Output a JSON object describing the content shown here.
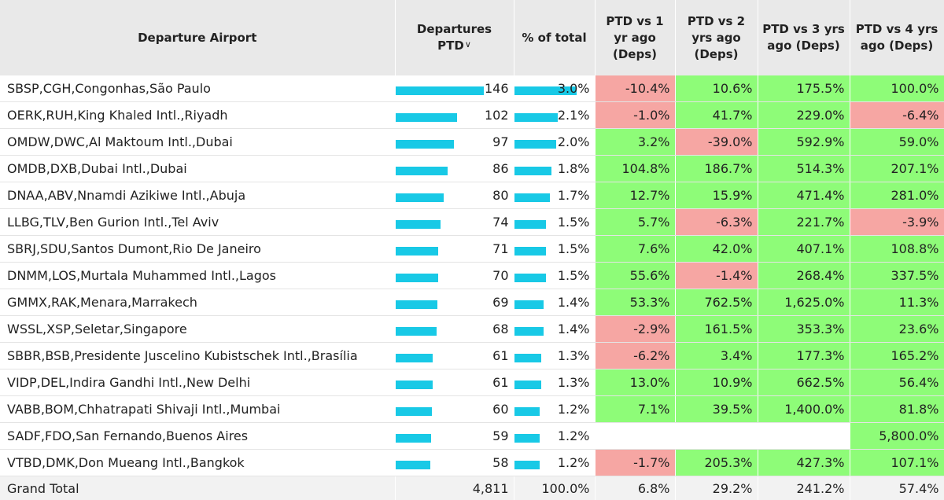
{
  "header": {
    "airport": "Departure Airport",
    "departures": "Departures PTD",
    "pct_total": "% of total",
    "vs1": "PTD vs 1 yr ago (Deps)",
    "vs2": "PTD vs 2 yrs ago (Deps)",
    "vs3": "PTD vs 3 yrs ago (Deps)",
    "vs4": "PTD vs 4 yrs ago (Deps)",
    "sort_icon": "chevron-down-icon"
  },
  "colors": {
    "bar": "#18c9e6",
    "positive": "#8efc78",
    "negative": "#f6a6a3",
    "header_bg": "#e9e9e9"
  },
  "rows": [
    {
      "airport": "SBSP,CGH,Congonhas,São Paulo",
      "deps": "146",
      "pct": "3.0%",
      "v1": "-10.4%",
      "v2": "10.6%",
      "v3": "175.5%",
      "v4": "100.0%"
    },
    {
      "airport": "OERK,RUH,King Khaled Intl.,Riyadh",
      "deps": "102",
      "pct": "2.1%",
      "v1": "-1.0%",
      "v2": "41.7%",
      "v3": "229.0%",
      "v4": "-6.4%"
    },
    {
      "airport": "OMDW,DWC,Al Maktoum Intl.,Dubai",
      "deps": "97",
      "pct": "2.0%",
      "v1": "3.2%",
      "v2": "-39.0%",
      "v3": "592.9%",
      "v4": "59.0%"
    },
    {
      "airport": "OMDB,DXB,Dubai Intl.,Dubai",
      "deps": "86",
      "pct": "1.8%",
      "v1": "104.8%",
      "v2": "186.7%",
      "v3": "514.3%",
      "v4": "207.1%"
    },
    {
      "airport": "DNAA,ABV,Nnamdi Azikiwe Intl.,Abuja",
      "deps": "80",
      "pct": "1.7%",
      "v1": "12.7%",
      "v2": "15.9%",
      "v3": "471.4%",
      "v4": "281.0%"
    },
    {
      "airport": "LLBG,TLV,Ben Gurion Intl.,Tel Aviv",
      "deps": "74",
      "pct": "1.5%",
      "v1": "5.7%",
      "v2": "-6.3%",
      "v3": "221.7%",
      "v4": "-3.9%"
    },
    {
      "airport": "SBRJ,SDU,Santos Dumont,Rio De Janeiro",
      "deps": "71",
      "pct": "1.5%",
      "v1": "7.6%",
      "v2": "42.0%",
      "v3": "407.1%",
      "v4": "108.8%"
    },
    {
      "airport": "DNMM,LOS,Murtala Muhammed Intl.,Lagos",
      "deps": "70",
      "pct": "1.5%",
      "v1": "55.6%",
      "v2": "-1.4%",
      "v3": "268.4%",
      "v4": "337.5%"
    },
    {
      "airport": "GMMX,RAK,Menara,Marrakech",
      "deps": "69",
      "pct": "1.4%",
      "v1": "53.3%",
      "v2": "762.5%",
      "v3": "1,625.0%",
      "v4": "11.3%"
    },
    {
      "airport": "WSSL,XSP,Seletar,Singapore",
      "deps": "68",
      "pct": "1.4%",
      "v1": "-2.9%",
      "v2": "161.5%",
      "v3": "353.3%",
      "v4": "23.6%"
    },
    {
      "airport": "SBBR,BSB,Presidente Juscelino Kubistschek Intl.,Brasília",
      "deps": "61",
      "pct": "1.3%",
      "v1": "-6.2%",
      "v2": "3.4%",
      "v3": "177.3%",
      "v4": "165.2%"
    },
    {
      "airport": "VIDP,DEL,Indira Gandhi Intl.,New Delhi",
      "deps": "61",
      "pct": "1.3%",
      "v1": "13.0%",
      "v2": "10.9%",
      "v3": "662.5%",
      "v4": "56.4%"
    },
    {
      "airport": "VABB,BOM,Chhatrapati Shivaji Intl.,Mumbai",
      "deps": "60",
      "pct": "1.2%",
      "v1": "7.1%",
      "v2": "39.5%",
      "v3": "1,400.0%",
      "v4": "81.8%"
    },
    {
      "airport": "SADF,FDO,San Fernando,Buenos Aires",
      "deps": "59",
      "pct": "1.2%",
      "v1": "",
      "v2": "",
      "v3": "",
      "v4": "5,800.0%"
    },
    {
      "airport": "VTBD,DMK,Don Mueang Intl.,Bangkok",
      "deps": "58",
      "pct": "1.2%",
      "v1": "-1.7%",
      "v2": "205.3%",
      "v3": "427.3%",
      "v4": "107.1%"
    }
  ],
  "total": {
    "label": "Grand Total",
    "deps": "4,811",
    "pct": "100.0%",
    "v1": "6.8%",
    "v2": "29.2%",
    "v3": "241.2%",
    "v4": "57.4%"
  }
}
